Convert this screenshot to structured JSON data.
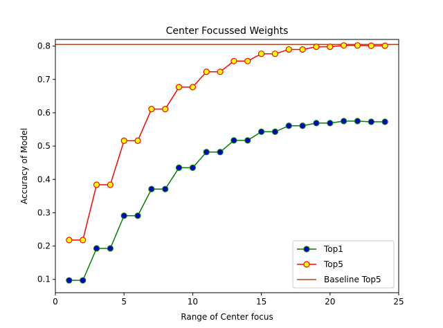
{
  "chart_data": {
    "type": "line",
    "title": "Center Focussed Weights",
    "xlabel": "Range of Center focus",
    "ylabel": "Accuracy of Model",
    "xlim": [
      0,
      25
    ],
    "ylim": [
      0.06,
      0.82
    ],
    "xticks": [
      0,
      5,
      10,
      15,
      20,
      25
    ],
    "yticks": [
      0.1,
      0.2,
      0.3,
      0.4,
      0.5,
      0.6,
      0.7,
      0.8
    ],
    "grid": false,
    "legend": "lower-right",
    "x": [
      1,
      2,
      3,
      4,
      5,
      6,
      7,
      8,
      9,
      10,
      11,
      12,
      13,
      14,
      15,
      16,
      17,
      18,
      19,
      20,
      21,
      22,
      23,
      24
    ],
    "series": [
      {
        "name": "Top1",
        "color": "#008000",
        "marker_face": "#0000cc",
        "values": [
          0.097,
          0.097,
          0.193,
          0.193,
          0.291,
          0.291,
          0.371,
          0.371,
          0.435,
          0.435,
          0.482,
          0.482,
          0.517,
          0.517,
          0.543,
          0.543,
          0.561,
          0.561,
          0.569,
          0.569,
          0.575,
          0.575,
          0.573,
          0.573
        ]
      },
      {
        "name": "Top5",
        "color": "#ff0000",
        "marker_face": "#ffff00",
        "values": [
          0.218,
          0.218,
          0.384,
          0.384,
          0.516,
          0.516,
          0.611,
          0.611,
          0.677,
          0.677,
          0.723,
          0.723,
          0.755,
          0.755,
          0.777,
          0.777,
          0.79,
          0.79,
          0.798,
          0.798,
          0.802,
          0.802,
          0.801,
          0.801
        ]
      }
    ],
    "baseline": {
      "name": "Baseline Top5",
      "color": "#b5461a",
      "value": 0.805
    }
  }
}
